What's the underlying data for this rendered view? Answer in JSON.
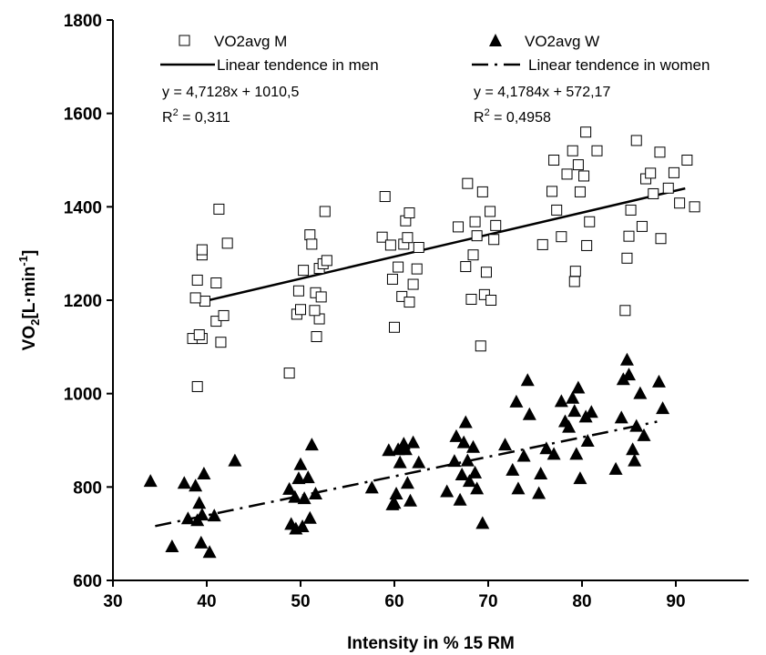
{
  "chart_data": {
    "type": "scatter",
    "xlabel": "Intensity in % 15 RM",
    "ylabel_main": "VO",
    "ylabel_sub": "2",
    "ylabel_mid": "[L·min",
    "ylabel_sup": "-1",
    "ylabel_end": "]",
    "xlim": [
      30,
      95
    ],
    "ylim": [
      600,
      1800
    ],
    "xticks": [
      "30",
      "40",
      "50",
      "60",
      "70",
      "80",
      "90"
    ],
    "yticks": [
      "600",
      "800",
      "1000",
      "1200",
      "1400",
      "1600",
      "1800"
    ],
    "legend": {
      "men_points": "VO2avg M",
      "women_points": "VO2avg W",
      "men_line": "Linear tendence in men",
      "women_line": "Linear tendence in women"
    },
    "equations": {
      "men": "y = 4,7128x + 1010,5",
      "men_r2_prefix": "R",
      "men_r2_sup": "2",
      "men_r2_value": " = 0,311",
      "women": "y = 4,1784x + 572,17",
      "women_r2_prefix": "R",
      "women_r2_sup": "2",
      "women_r2_value": " = 0,4958"
    },
    "trendlines": {
      "men": {
        "slope": 4.7128,
        "intercept": 1010.5,
        "x_range": [
          39.5,
          91
        ]
      },
      "women": {
        "slope": 4.1784,
        "intercept": 572.17,
        "x_range": [
          34.5,
          88
        ]
      }
    },
    "series": [
      {
        "marker": "open-square",
        "points": [
          [
            39,
            1015
          ],
          [
            38.5,
            1118
          ],
          [
            39.5,
            1118
          ],
          [
            39.2,
            1126
          ],
          [
            39.8,
            1198
          ],
          [
            38.8,
            1205
          ],
          [
            39,
            1243
          ],
          [
            39.5,
            1297
          ],
          [
            39.5,
            1308
          ],
          [
            41,
            1155
          ],
          [
            41.5,
            1110
          ],
          [
            41.8,
            1167
          ],
          [
            41,
            1237
          ],
          [
            41.3,
            1395
          ],
          [
            42.2,
            1322
          ],
          [
            48.8,
            1044
          ],
          [
            49.6,
            1170
          ],
          [
            50,
            1180
          ],
          [
            49.8,
            1220
          ],
          [
            50.3,
            1264
          ],
          [
            51,
            1340
          ],
          [
            51.2,
            1320
          ],
          [
            51.7,
            1122
          ],
          [
            52,
            1160
          ],
          [
            51.5,
            1178
          ],
          [
            51.6,
            1216
          ],
          [
            52.2,
            1207
          ],
          [
            52,
            1268
          ],
          [
            52.4,
            1278
          ],
          [
            52.8,
            1285
          ],
          [
            52.6,
            1390
          ],
          [
            58.7,
            1335
          ],
          [
            59,
            1422
          ],
          [
            59.6,
            1318
          ],
          [
            60,
            1142
          ],
          [
            59.8,
            1245
          ],
          [
            60.4,
            1271
          ],
          [
            60.8,
            1208
          ],
          [
            61,
            1320
          ],
          [
            61.2,
            1370
          ],
          [
            61.4,
            1334
          ],
          [
            61.6,
            1387
          ],
          [
            61.6,
            1196
          ],
          [
            62,
            1234
          ],
          [
            62.4,
            1267
          ],
          [
            62.6,
            1313
          ],
          [
            66.8,
            1357
          ],
          [
            67.6,
            1272
          ],
          [
            67.8,
            1450
          ],
          [
            68.2,
            1202
          ],
          [
            68.4,
            1297
          ],
          [
            68.6,
            1368
          ],
          [
            68.8,
            1338
          ],
          [
            69.2,
            1102
          ],
          [
            69.4,
            1432
          ],
          [
            69.6,
            1212
          ],
          [
            69.8,
            1260
          ],
          [
            70.2,
            1390
          ],
          [
            70.3,
            1200
          ],
          [
            70.6,
            1330
          ],
          [
            70.8,
            1360
          ],
          [
            75.8,
            1319
          ],
          [
            76.8,
            1433
          ],
          [
            77,
            1500
          ],
          [
            77.3,
            1393
          ],
          [
            77.8,
            1336
          ],
          [
            78.4,
            1470
          ],
          [
            79,
            1520
          ],
          [
            79.2,
            1240
          ],
          [
            79.3,
            1262
          ],
          [
            79.6,
            1490
          ],
          [
            79.8,
            1432
          ],
          [
            80.2,
            1466
          ],
          [
            80.4,
            1560
          ],
          [
            80.5,
            1317
          ],
          [
            80.8,
            1368
          ],
          [
            81.6,
            1520
          ],
          [
            84.6,
            1178
          ],
          [
            84.8,
            1290
          ],
          [
            85,
            1337
          ],
          [
            85.2,
            1393
          ],
          [
            85.8,
            1542
          ],
          [
            86.4,
            1358
          ],
          [
            86.8,
            1460
          ],
          [
            87.3,
            1472
          ],
          [
            87.6,
            1428
          ],
          [
            88.3,
            1517
          ],
          [
            88.4,
            1332
          ],
          [
            89.2,
            1440
          ],
          [
            89.8,
            1473
          ],
          [
            90.4,
            1408
          ],
          [
            91.2,
            1500
          ],
          [
            92,
            1400
          ]
        ]
      },
      {
        "marker": "filled-triangle",
        "points": [
          [
            34,
            812
          ],
          [
            36.3,
            672
          ],
          [
            37.6,
            808
          ],
          [
            38,
            732
          ],
          [
            38.8,
            802
          ],
          [
            39,
            728
          ],
          [
            39.2,
            765
          ],
          [
            39.4,
            680
          ],
          [
            39.5,
            740
          ],
          [
            39.7,
            828
          ],
          [
            40.3,
            660
          ],
          [
            40.8,
            738
          ],
          [
            43,
            856
          ],
          [
            48.8,
            795
          ],
          [
            49,
            720
          ],
          [
            49.4,
            778
          ],
          [
            49.5,
            710
          ],
          [
            49.8,
            818
          ],
          [
            50,
            848
          ],
          [
            50.2,
            715
          ],
          [
            50.4,
            775
          ],
          [
            50.8,
            820
          ],
          [
            51,
            733
          ],
          [
            51.2,
            890
          ],
          [
            51.6,
            785
          ],
          [
            57.6,
            798
          ],
          [
            59.4,
            878
          ],
          [
            59.8,
            762
          ],
          [
            60,
            765
          ],
          [
            60.2,
            785
          ],
          [
            60.4,
            880
          ],
          [
            60.6,
            852
          ],
          [
            61,
            892
          ],
          [
            61.2,
            880
          ],
          [
            61.4,
            808
          ],
          [
            61.7,
            770
          ],
          [
            62,
            895
          ],
          [
            62.6,
            852
          ],
          [
            65.6,
            790
          ],
          [
            66.4,
            855
          ],
          [
            66.6,
            908
          ],
          [
            67,
            772
          ],
          [
            67.2,
            826
          ],
          [
            67.4,
            895
          ],
          [
            67.6,
            938
          ],
          [
            67.8,
            856
          ],
          [
            68,
            812
          ],
          [
            68.4,
            885
          ],
          [
            68.6,
            830
          ],
          [
            68.8,
            796
          ],
          [
            69.4,
            722
          ],
          [
            71.8,
            890
          ],
          [
            72.6,
            836
          ],
          [
            73,
            982
          ],
          [
            73.2,
            796
          ],
          [
            73.8,
            866
          ],
          [
            74.2,
            1028
          ],
          [
            74.4,
            955
          ],
          [
            75.4,
            786
          ],
          [
            75.6,
            828
          ],
          [
            76.2,
            882
          ],
          [
            77,
            870
          ],
          [
            77.8,
            983
          ],
          [
            78.2,
            940
          ],
          [
            78.6,
            928
          ],
          [
            79,
            990
          ],
          [
            79.2,
            962
          ],
          [
            79.4,
            870
          ],
          [
            79.6,
            1012
          ],
          [
            79.8,
            818
          ],
          [
            80.4,
            950
          ],
          [
            80.6,
            898
          ],
          [
            81,
            960
          ],
          [
            83.6,
            838
          ],
          [
            84.2,
            948
          ],
          [
            84.4,
            1030
          ],
          [
            84.8,
            1072
          ],
          [
            85,
            1040
          ],
          [
            85.4,
            880
          ],
          [
            85.6,
            856
          ],
          [
            85.8,
            930
          ],
          [
            86.2,
            1000
          ],
          [
            86.6,
            910
          ],
          [
            88.2,
            1025
          ],
          [
            88.6,
            968
          ]
        ]
      }
    ]
  }
}
